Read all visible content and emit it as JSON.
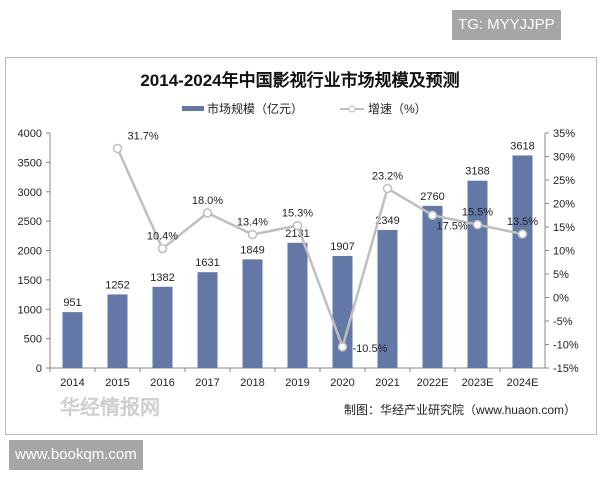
{
  "watermarks": {
    "top": "TG: MYYJJPP",
    "bottom": "www.bookqm.com",
    "overlay": "华经情报网"
  },
  "chart_data": {
    "type": "bar+line",
    "title": "2014-2024年中国影视行业市场规模及预测",
    "categories": [
      "2014",
      "2015",
      "2016",
      "2017",
      "2018",
      "2019",
      "2020",
      "2021",
      "2022E",
      "2023E",
      "2024E"
    ],
    "series": [
      {
        "name": "市场规模（亿元）",
        "type": "bar",
        "axis": "left",
        "color": "#6478a8",
        "values": [
          951,
          1252,
          1382,
          1631,
          1849,
          2131,
          1907,
          2349,
          2760,
          3188,
          3618
        ],
        "labels": [
          "951",
          "1252",
          "1382",
          "1631",
          "1849",
          "2131",
          "1907",
          "2349",
          "2760",
          "3188",
          "3618"
        ]
      },
      {
        "name": "增速（%）",
        "type": "line",
        "axis": "right",
        "color": "#bfbfbf",
        "values": [
          null,
          31.7,
          10.4,
          18.0,
          13.4,
          15.3,
          -10.5,
          23.2,
          17.5,
          15.5,
          13.5
        ],
        "labels": [
          "",
          "31.7%",
          "10.4%",
          "18.0%",
          "13.4%",
          "15.3%",
          "-10.5%",
          "23.2%",
          "17.5%",
          "15.5%",
          "13.5%"
        ]
      }
    ],
    "left_axis": {
      "ylim": [
        0,
        4000
      ],
      "ticks": [
        "0",
        "500",
        "1000",
        "1500",
        "2000",
        "2500",
        "3000",
        "3500",
        "4000"
      ]
    },
    "right_axis": {
      "ylim": [
        -15,
        35
      ],
      "ticks": [
        "-15%",
        "-10%",
        "-5%",
        "0%",
        "5%",
        "10%",
        "15%",
        "20%",
        "25%",
        "30%",
        "35%"
      ]
    },
    "grid": false,
    "legend": "top-center",
    "source": "制图：华经产业研究院（www.huaon.com）"
  }
}
